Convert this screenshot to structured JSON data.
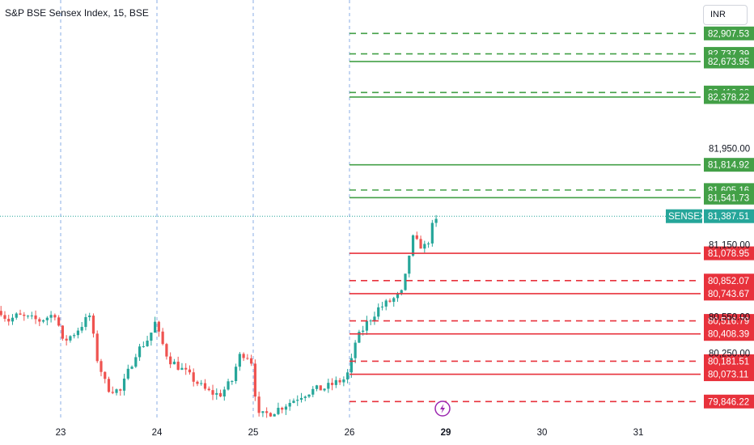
{
  "header": {
    "title": "S&P BSE Sensex Index, 15, BSE",
    "currency": "INR"
  },
  "colors": {
    "up": "#26a69a",
    "down": "#ef5350",
    "resistance": "#43a047",
    "support": "#e8323c",
    "last_price": "#26a69a",
    "vgrid": "#6b9be0"
  },
  "icons": {
    "event_marker": "lightning-icon"
  },
  "chart_data": {
    "type": "candlestick",
    "y_axis": {
      "min": 79700,
      "max": 82950,
      "scale": "linear",
      "position": "right"
    },
    "y_tick_labels": [
      "81,950.00",
      "81,150.00",
      "80,550.00",
      "80,250.00"
    ],
    "x_tick_labels": [
      {
        "label": "23",
        "day": 0,
        "bold": false
      },
      {
        "label": "24",
        "day": 1,
        "bold": false
      },
      {
        "label": "25",
        "day": 2,
        "bold": false
      },
      {
        "label": "26",
        "day": 3,
        "bold": false
      },
      {
        "label": "29",
        "day": 4,
        "bold": true
      },
      {
        "label": "30",
        "day": 5,
        "bold": false
      },
      {
        "label": "31",
        "day": 6,
        "bold": false
      }
    ],
    "session_separators": [
      0,
      1,
      2,
      3
    ],
    "last_price": {
      "symbol": "SENSEX",
      "value": "81,387.51",
      "price": 81387.51
    },
    "levels": [
      {
        "value": "82,907.53",
        "price": 82907.53,
        "type": "resistance",
        "style": "dashed"
      },
      {
        "value": "82,737.39",
        "price": 82737.39,
        "type": "resistance",
        "style": "dashed"
      },
      {
        "value": "82,673.95",
        "price": 82673.95,
        "type": "resistance",
        "style": "solid"
      },
      {
        "value": "82,416.08",
        "price": 82416.08,
        "type": "resistance",
        "style": "dashed"
      },
      {
        "value": "82,378.22",
        "price": 82378.22,
        "type": "resistance",
        "style": "solid"
      },
      {
        "value": "81,814.92",
        "price": 81814.92,
        "type": "resistance",
        "style": "solid"
      },
      {
        "value": "81,605.16",
        "price": 81605.16,
        "type": "resistance",
        "style": "dashed"
      },
      {
        "value": "81,541.73",
        "price": 81541.73,
        "type": "resistance",
        "style": "solid"
      },
      {
        "value": "81,078.95",
        "price": 81078.95,
        "type": "support",
        "style": "solid"
      },
      {
        "value": "80,852.07",
        "price": 80852.07,
        "type": "support",
        "style": "dashed"
      },
      {
        "value": "80,743.67",
        "price": 80743.67,
        "type": "support",
        "style": "solid"
      },
      {
        "value": "80,516.79",
        "price": 80516.79,
        "type": "support",
        "style": "dashed"
      },
      {
        "value": "80,408.39",
        "price": 80408.39,
        "type": "support",
        "style": "solid"
      },
      {
        "value": "80,181.51",
        "price": 80181.51,
        "type": "support",
        "style": "dashed"
      },
      {
        "value": "80,073.11",
        "price": 80073.11,
        "type": "support",
        "style": "solid"
      },
      {
        "value": "79,846.22",
        "price": 79846.22,
        "type": "support",
        "style": "dashed"
      }
    ],
    "price_path": [
      [
        -0.62,
        80600
      ],
      [
        -0.55,
        80520
      ],
      [
        -0.45,
        80560
      ],
      [
        -0.35,
        80540
      ],
      [
        -0.22,
        80520
      ],
      [
        -0.05,
        80580
      ],
      [
        0.02,
        80340
      ],
      [
        0.15,
        80420
      ],
      [
        0.3,
        80560
      ],
      [
        0.38,
        80200
      ],
      [
        0.48,
        79960
      ],
      [
        0.62,
        79930
      ],
      [
        0.78,
        80250
      ],
      [
        0.92,
        80380
      ],
      [
        0.98,
        80500
      ],
      [
        1.02,
        80400
      ],
      [
        1.12,
        80200
      ],
      [
        1.28,
        80100
      ],
      [
        1.42,
        80000
      ],
      [
        1.52,
        79930
      ],
      [
        1.65,
        79900
      ],
      [
        1.78,
        80020
      ],
      [
        1.85,
        80220
      ],
      [
        1.92,
        80250
      ],
      [
        1.98,
        80180
      ],
      [
        2.05,
        79720
      ],
      [
        2.2,
        79760
      ],
      [
        2.38,
        79840
      ],
      [
        2.5,
        79900
      ],
      [
        2.62,
        79940
      ],
      [
        2.75,
        79960
      ],
      [
        2.85,
        80000
      ],
      [
        2.94,
        80030
      ],
      [
        3.0,
        80100
      ],
      [
        3.06,
        80340
      ],
      [
        3.18,
        80500
      ],
      [
        3.3,
        80620
      ],
      [
        3.42,
        80680
      ],
      [
        3.5,
        80720
      ],
      [
        3.56,
        80760
      ],
      [
        3.6,
        81000
      ],
      [
        3.66,
        81200
      ],
      [
        3.72,
        81150
      ],
      [
        3.8,
        81130
      ],
      [
        3.86,
        81300
      ],
      [
        3.93,
        81380
      ]
    ]
  }
}
